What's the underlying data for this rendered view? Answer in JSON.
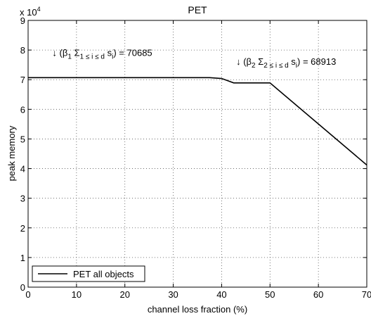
{
  "chart_data": {
    "type": "line",
    "title": "PET",
    "xlabel": "channel loss fraction (%)",
    "ylabel": "peak memory",
    "xlim": [
      0,
      70
    ],
    "ylim": [
      0,
      9
    ],
    "y_multiplier": "x 10",
    "y_multiplier_exp": "4",
    "x_ticks": [
      0,
      10,
      20,
      30,
      40,
      50,
      60,
      70
    ],
    "y_ticks": [
      0,
      1,
      2,
      3,
      4,
      5,
      6,
      7,
      8,
      9
    ],
    "grid": true,
    "legend_position": "bottom-left",
    "series": [
      {
        "name": "PET all objects",
        "color": "#000000",
        "x": [
          0,
          37.5,
          40,
          42.5,
          50,
          70
        ],
        "y": [
          7.0685,
          7.0685,
          7.04,
          6.8913,
          6.8913,
          4.12
        ]
      }
    ],
    "annotations": [
      {
        "arrow": "↓",
        "parts": [
          {
            "t": " (β",
            "sub": false
          },
          {
            "t": "1",
            "sub": true
          },
          {
            "t": " Σ",
            "sub": false
          },
          {
            "t": "1 ≤ i ≤ d",
            "sub": true
          },
          {
            "t": " s",
            "sub": false
          },
          {
            "t": "i",
            "sub": true
          },
          {
            "t": ") = 70685",
            "sub": false
          }
        ],
        "x": 5,
        "y": 7.8
      },
      {
        "arrow": "↓",
        "parts": [
          {
            "t": " (β",
            "sub": false
          },
          {
            "t": "2",
            "sub": true
          },
          {
            "t": " Σ",
            "sub": false
          },
          {
            "t": "2 ≤ i ≤ d",
            "sub": true
          },
          {
            "t": " s",
            "sub": false
          },
          {
            "t": "i",
            "sub": true
          },
          {
            "t": ") = 68913",
            "sub": false
          }
        ],
        "x": 43,
        "y": 7.5
      }
    ]
  }
}
